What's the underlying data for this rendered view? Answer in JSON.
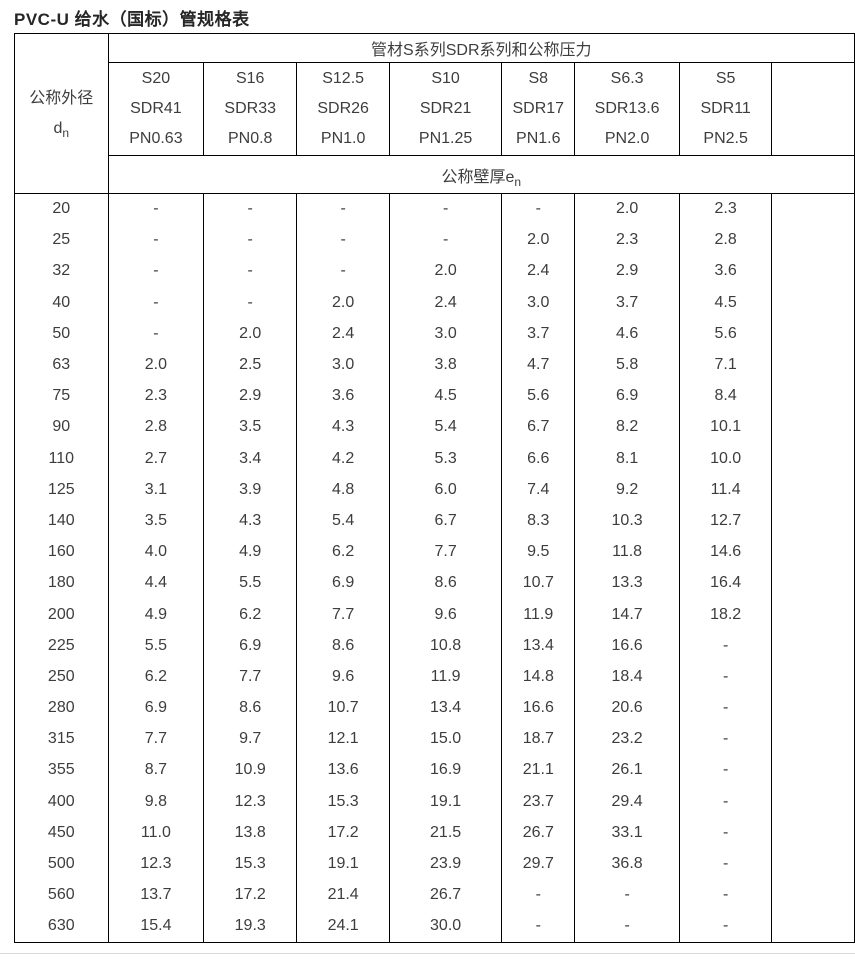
{
  "title": "PVC-U 给水（国标）管规格表",
  "colors": {
    "border": "#000000",
    "text": "#3d3d3d",
    "title_text": "#262626",
    "background": "#ffffff",
    "bottom_rule": "#d9d9d9"
  },
  "table": {
    "col0_header": {
      "line1": "公称外径",
      "symbol_base": "d",
      "symbol_sub": "n"
    },
    "span_header": "管材S系列SDR系列和公称压力",
    "subheader": {
      "base": "公称壁厚e",
      "sub": "n"
    },
    "series_columns": [
      {
        "s": "S20",
        "sdr": "SDR41",
        "pn": "PN0.63"
      },
      {
        "s": "S16",
        "sdr": "SDR33",
        "pn": "PN0.8"
      },
      {
        "s": "S12.5",
        "sdr": "SDR26",
        "pn": "PN1.0"
      },
      {
        "s": "S10",
        "sdr": "SDR21",
        "pn": "PN1.25"
      },
      {
        "s": "S8",
        "sdr": "SDR17",
        "pn": "PN1.6"
      },
      {
        "s": "S6.3",
        "sdr": "SDR13.6",
        "pn": "PN2.0"
      },
      {
        "s": "S5",
        "sdr": "SDR11",
        "pn": "PN2.5"
      }
    ],
    "rows": [
      {
        "dn": "20",
        "values": [
          "-",
          "-",
          "-",
          "-",
          "-",
          "2.0",
          "2.3"
        ]
      },
      {
        "dn": "25",
        "values": [
          "-",
          "-",
          "-",
          "-",
          "2.0",
          "2.3",
          "2.8"
        ]
      },
      {
        "dn": "32",
        "values": [
          "-",
          "-",
          "-",
          "2.0",
          "2.4",
          "2.9",
          "3.6"
        ]
      },
      {
        "dn": "40",
        "values": [
          "-",
          "-",
          "2.0",
          "2.4",
          "3.0",
          "3.7",
          "4.5"
        ]
      },
      {
        "dn": "50",
        "values": [
          "-",
          "2.0",
          "2.4",
          "3.0",
          "3.7",
          "4.6",
          "5.6"
        ]
      },
      {
        "dn": "63",
        "values": [
          "2.0",
          "2.5",
          "3.0",
          "3.8",
          "4.7",
          "5.8",
          "7.1"
        ]
      },
      {
        "dn": "75",
        "values": [
          "2.3",
          "2.9",
          "3.6",
          "4.5",
          "5.6",
          "6.9",
          "8.4"
        ]
      },
      {
        "dn": "90",
        "values": [
          "2.8",
          "3.5",
          "4.3",
          "5.4",
          "6.7",
          "8.2",
          "10.1"
        ]
      },
      {
        "dn": "110",
        "values": [
          "2.7",
          "3.4",
          "4.2",
          "5.3",
          "6.6",
          "8.1",
          "10.0"
        ]
      },
      {
        "dn": "125",
        "values": [
          "3.1",
          "3.9",
          "4.8",
          "6.0",
          "7.4",
          "9.2",
          "11.4"
        ]
      },
      {
        "dn": "140",
        "values": [
          "3.5",
          "4.3",
          "5.4",
          "6.7",
          "8.3",
          "10.3",
          "12.7"
        ]
      },
      {
        "dn": "160",
        "values": [
          "4.0",
          "4.9",
          "6.2",
          "7.7",
          "9.5",
          "11.8",
          "14.6"
        ]
      },
      {
        "dn": "180",
        "values": [
          "4.4",
          "5.5",
          "6.9",
          "8.6",
          "10.7",
          "13.3",
          "16.4"
        ]
      },
      {
        "dn": "200",
        "values": [
          "4.9",
          "6.2",
          "7.7",
          "9.6",
          "11.9",
          "14.7",
          "18.2"
        ]
      },
      {
        "dn": "225",
        "values": [
          "5.5",
          "6.9",
          "8.6",
          "10.8",
          "13.4",
          "16.6",
          "-"
        ]
      },
      {
        "dn": "250",
        "values": [
          "6.2",
          "7.7",
          "9.6",
          "11.9",
          "14.8",
          "18.4",
          "-"
        ]
      },
      {
        "dn": "280",
        "values": [
          "6.9",
          "8.6",
          "10.7",
          "13.4",
          "16.6",
          "20.6",
          "-"
        ]
      },
      {
        "dn": "315",
        "values": [
          "7.7",
          "9.7",
          "12.1",
          "15.0",
          "18.7",
          "23.2",
          "-"
        ]
      },
      {
        "dn": "355",
        "values": [
          "8.7",
          "10.9",
          "13.6",
          "16.9",
          "21.1",
          "26.1",
          "-"
        ]
      },
      {
        "dn": "400",
        "values": [
          "9.8",
          "12.3",
          "15.3",
          "19.1",
          "23.7",
          "29.4",
          "-"
        ]
      },
      {
        "dn": "450",
        "values": [
          "11.0",
          "13.8",
          "17.2",
          "21.5",
          "26.7",
          "33.1",
          "-"
        ]
      },
      {
        "dn": "500",
        "values": [
          "12.3",
          "15.3",
          "19.1",
          "23.9",
          "29.7",
          "36.8",
          "-"
        ]
      },
      {
        "dn": "560",
        "values": [
          "13.7",
          "17.2",
          "21.4",
          "26.7",
          "-",
          "-",
          "-"
        ]
      },
      {
        "dn": "630",
        "values": [
          "15.4",
          "19.3",
          "24.1",
          "30.0",
          "-",
          "-",
          "-"
        ]
      }
    ]
  }
}
